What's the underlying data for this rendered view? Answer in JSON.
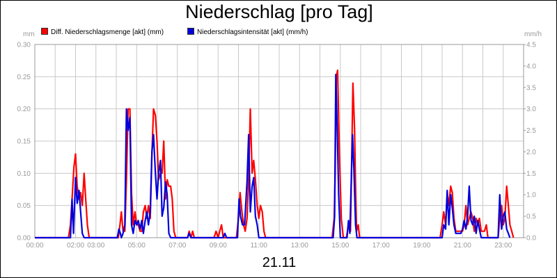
{
  "chart_data": {
    "type": "line",
    "title": "Niederschlag [pro Tag]",
    "date_label": "21.11",
    "x_unit": "hours",
    "xlim": [
      0,
      24
    ],
    "x_ticks": [
      "00:00",
      "02:00",
      "03:00",
      "05:00",
      "07:00",
      "09:00",
      "11:00",
      "13:00",
      "15:00",
      "17:00",
      "19:00",
      "21:00",
      "23:00"
    ],
    "x_tick_values": [
      0,
      2,
      3,
      5,
      7,
      9,
      11,
      13,
      15,
      17,
      19,
      21,
      23
    ],
    "x_grid": [
      0,
      1,
      2,
      3,
      4,
      5,
      6,
      7,
      8,
      9,
      10,
      11,
      12,
      13,
      14,
      15,
      16,
      17,
      18,
      19,
      20,
      21,
      22,
      23,
      24
    ],
    "left_axis": {
      "unit": "mm",
      "ylim": [
        0,
        0.3
      ],
      "ticks": [
        "0.00",
        "0.05",
        "0.10",
        "0.15",
        "0.20",
        "0.25",
        "0.30"
      ]
    },
    "right_axis": {
      "unit": "mm/h",
      "ylim": [
        0,
        4.5
      ],
      "ticks": [
        "0.0",
        "0.5",
        "1.0",
        "1.5",
        "2.0",
        "2.5",
        "3.0",
        "3.5",
        "4.0",
        "4.5"
      ]
    },
    "grid": true,
    "legend_position": "top-left",
    "series": [
      {
        "name": "Diff. Niederschlagsmenge [akt] (mm)",
        "color": "#ff0000",
        "axis": "left",
        "points": [
          [
            0,
            0
          ],
          [
            1.65,
            0
          ],
          [
            1.75,
            0.02
          ],
          [
            1.83,
            0.06
          ],
          [
            1.92,
            0.11
          ],
          [
            2.0,
            0.13
          ],
          [
            2.08,
            0.08
          ],
          [
            2.17,
            0.06
          ],
          [
            2.25,
            0.07
          ],
          [
            2.33,
            0.05
          ],
          [
            2.42,
            0.1
          ],
          [
            2.5,
            0.06
          ],
          [
            2.58,
            0.02
          ],
          [
            2.67,
            0
          ],
          [
            4.1,
            0
          ],
          [
            4.18,
            0.02
          ],
          [
            4.25,
            0.04
          ],
          [
            4.33,
            0.01
          ],
          [
            4.42,
            0.01
          ],
          [
            4.5,
            0.09
          ],
          [
            4.58,
            0.2
          ],
          [
            4.67,
            0.2
          ],
          [
            4.75,
            0.07
          ],
          [
            4.83,
            0.02
          ],
          [
            4.92,
            0.04
          ],
          [
            5.0,
            0.02
          ],
          [
            5.08,
            0.02
          ],
          [
            5.17,
            0.01
          ],
          [
            5.25,
            0.01
          ],
          [
            5.33,
            0.04
          ],
          [
            5.42,
            0.05
          ],
          [
            5.5,
            0.03
          ],
          [
            5.58,
            0.05
          ],
          [
            5.67,
            0.03
          ],
          [
            5.75,
            0.13
          ],
          [
            5.83,
            0.2
          ],
          [
            5.92,
            0.19
          ],
          [
            6.0,
            0.15
          ],
          [
            6.08,
            0.09
          ],
          [
            6.17,
            0.1
          ],
          [
            6.25,
            0.1
          ],
          [
            6.33,
            0.15
          ],
          [
            6.42,
            0.06
          ],
          [
            6.5,
            0.09
          ],
          [
            6.58,
            0.08
          ],
          [
            6.67,
            0.08
          ],
          [
            6.75,
            0.06
          ],
          [
            6.83,
            0.01
          ],
          [
            6.92,
            0
          ],
          [
            7.5,
            0
          ],
          [
            7.58,
            0.01
          ],
          [
            7.67,
            0
          ],
          [
            7.75,
            0.01
          ],
          [
            7.83,
            0
          ],
          [
            8.8,
            0
          ],
          [
            8.9,
            0.01
          ],
          [
            9.0,
            0
          ],
          [
            9.08,
            0.01
          ],
          [
            9.17,
            0.02
          ],
          [
            9.25,
            0
          ],
          [
            9.9,
            0
          ],
          [
            10.0,
            0.03
          ],
          [
            10.08,
            0.07
          ],
          [
            10.17,
            0.04
          ],
          [
            10.25,
            0.02
          ],
          [
            10.33,
            0.01
          ],
          [
            10.42,
            0.03
          ],
          [
            10.5,
            0.09
          ],
          [
            10.58,
            0.2
          ],
          [
            10.67,
            0.1
          ],
          [
            10.75,
            0.12
          ],
          [
            10.83,
            0.09
          ],
          [
            10.92,
            0.05
          ],
          [
            11.0,
            0.03
          ],
          [
            11.08,
            0.05
          ],
          [
            11.17,
            0.04
          ],
          [
            11.25,
            0.01
          ],
          [
            11.33,
            0
          ],
          [
            14.6,
            0
          ],
          [
            14.7,
            0.03
          ],
          [
            14.75,
            0.1
          ],
          [
            14.8,
            0.25
          ],
          [
            14.87,
            0.26
          ],
          [
            14.95,
            0.14
          ],
          [
            15.05,
            0.03
          ],
          [
            15.15,
            0
          ],
          [
            15.3,
            0
          ],
          [
            15.4,
            0.02
          ],
          [
            15.5,
            0.01
          ],
          [
            15.55,
            0.1
          ],
          [
            15.62,
            0.24
          ],
          [
            15.7,
            0.17
          ],
          [
            15.75,
            0.08
          ],
          [
            15.8,
            0.01
          ],
          [
            15.88,
            0.02
          ],
          [
            15.95,
            0
          ],
          [
            19.9,
            0
          ],
          [
            20.0,
            0.02
          ],
          [
            20.08,
            0.04
          ],
          [
            20.17,
            0.02
          ],
          [
            20.25,
            0.07
          ],
          [
            20.33,
            0.05
          ],
          [
            20.42,
            0.08
          ],
          [
            20.5,
            0.07
          ],
          [
            20.58,
            0.03
          ],
          [
            20.67,
            0.01
          ],
          [
            20.75,
            0.01
          ],
          [
            20.83,
            0.01
          ],
          [
            20.92,
            0.01
          ],
          [
            21.0,
            0.01
          ],
          [
            21.08,
            0.02
          ],
          [
            21.17,
            0.05
          ],
          [
            21.25,
            0.02
          ],
          [
            21.33,
            0.03
          ],
          [
            21.42,
            0.04
          ],
          [
            21.5,
            0.03
          ],
          [
            21.58,
            0.01
          ],
          [
            21.67,
            0.03
          ],
          [
            21.75,
            0.02
          ],
          [
            21.83,
            0.03
          ],
          [
            21.92,
            0.01
          ],
          [
            22.0,
            0.01
          ],
          [
            22.08,
            0.01
          ],
          [
            22.17,
            0.02
          ],
          [
            22.25,
            0
          ],
          [
            22.75,
            0
          ],
          [
            22.83,
            0.03
          ],
          [
            22.92,
            0.05
          ],
          [
            23.0,
            0.02
          ],
          [
            23.08,
            0.03
          ],
          [
            23.17,
            0.08
          ],
          [
            23.25,
            0.05
          ],
          [
            23.33,
            0.02
          ],
          [
            23.42,
            0.01
          ],
          [
            23.5,
            0
          ]
        ]
      },
      {
        "name": "Niederschlagsintensität [akt] (mm/h)",
        "color": "#0000dd",
        "axis": "right",
        "points": [
          [
            0,
            0
          ],
          [
            1.75,
            0
          ],
          [
            1.83,
            0.9
          ],
          [
            1.9,
            0.1
          ],
          [
            2.0,
            1.4
          ],
          [
            2.08,
            0.8
          ],
          [
            2.17,
            1.1
          ],
          [
            2.25,
            0.6
          ],
          [
            2.33,
            0.1
          ],
          [
            2.42,
            0
          ],
          [
            4.05,
            0
          ],
          [
            4.13,
            0.2
          ],
          [
            4.2,
            0.1
          ],
          [
            4.25,
            0
          ],
          [
            4.33,
            0.1
          ],
          [
            4.42,
            0.3
          ],
          [
            4.5,
            3.0
          ],
          [
            4.58,
            2.5
          ],
          [
            4.67,
            2.8
          ],
          [
            4.75,
            0.3
          ],
          [
            4.83,
            0.1
          ],
          [
            4.92,
            0.4
          ],
          [
            5.0,
            0.3
          ],
          [
            5.08,
            0.4
          ],
          [
            5.17,
            0.2
          ],
          [
            5.25,
            0.4
          ],
          [
            5.33,
            0.1
          ],
          [
            5.42,
            0.4
          ],
          [
            5.5,
            0.6
          ],
          [
            5.58,
            0.3
          ],
          [
            5.67,
            0.6
          ],
          [
            5.75,
            2.0
          ],
          [
            5.83,
            2.4
          ],
          [
            5.92,
            1.5
          ],
          [
            6.0,
            0.9
          ],
          [
            6.08,
            1.5
          ],
          [
            6.17,
            1.8
          ],
          [
            6.25,
            0.5
          ],
          [
            6.33,
            0.7
          ],
          [
            6.42,
            1.3
          ],
          [
            6.5,
            1.0
          ],
          [
            6.58,
            0.1
          ],
          [
            6.67,
            0
          ],
          [
            7.5,
            0
          ],
          [
            7.58,
            0.1
          ],
          [
            7.67,
            0
          ],
          [
            9.25,
            0
          ],
          [
            9.33,
            0.1
          ],
          [
            9.42,
            0
          ],
          [
            9.95,
            0
          ],
          [
            10.03,
            0.9
          ],
          [
            10.1,
            0.5
          ],
          [
            10.2,
            0.3
          ],
          [
            10.3,
            0.3
          ],
          [
            10.42,
            1.3
          ],
          [
            10.5,
            2.4
          ],
          [
            10.58,
            0.6
          ],
          [
            10.67,
            1.2
          ],
          [
            10.75,
            1.4
          ],
          [
            10.83,
            0.5
          ],
          [
            10.92,
            0.3
          ],
          [
            11.0,
            0
          ],
          [
            14.65,
            0
          ],
          [
            14.72,
            0.5
          ],
          [
            14.78,
            3.8
          ],
          [
            14.85,
            2.5
          ],
          [
            14.92,
            1.0
          ],
          [
            15.0,
            0
          ],
          [
            15.33,
            0
          ],
          [
            15.4,
            0.4
          ],
          [
            15.47,
            0.1
          ],
          [
            15.53,
            1.2
          ],
          [
            15.6,
            2.4
          ],
          [
            15.67,
            1.6
          ],
          [
            15.75,
            0.3
          ],
          [
            15.82,
            0
          ],
          [
            20.0,
            0
          ],
          [
            20.08,
            0.3
          ],
          [
            20.17,
            0.2
          ],
          [
            20.25,
            1.1
          ],
          [
            20.33,
            0.3
          ],
          [
            20.42,
            1.0
          ],
          [
            20.5,
            0.7
          ],
          [
            20.58,
            0.3
          ],
          [
            20.67,
            0.1
          ],
          [
            20.75,
            0.1
          ],
          [
            20.83,
            0.1
          ],
          [
            20.92,
            0.1
          ],
          [
            21.0,
            0.2
          ],
          [
            21.08,
            0.4
          ],
          [
            21.17,
            0.2
          ],
          [
            21.25,
            0.5
          ],
          [
            21.33,
            1.2
          ],
          [
            21.42,
            0.4
          ],
          [
            21.5,
            0.3
          ],
          [
            21.58,
            0.5
          ],
          [
            21.67,
            0.1
          ],
          [
            21.75,
            0.4
          ],
          [
            21.83,
            0.2
          ],
          [
            21.92,
            0
          ],
          [
            22.75,
            0
          ],
          [
            22.83,
            1.0
          ],
          [
            22.92,
            0.2
          ],
          [
            23.0,
            0.5
          ],
          [
            23.08,
            0.6
          ],
          [
            23.17,
            0.2
          ],
          [
            23.25,
            0.1
          ],
          [
            23.33,
            0
          ]
        ]
      }
    ]
  }
}
